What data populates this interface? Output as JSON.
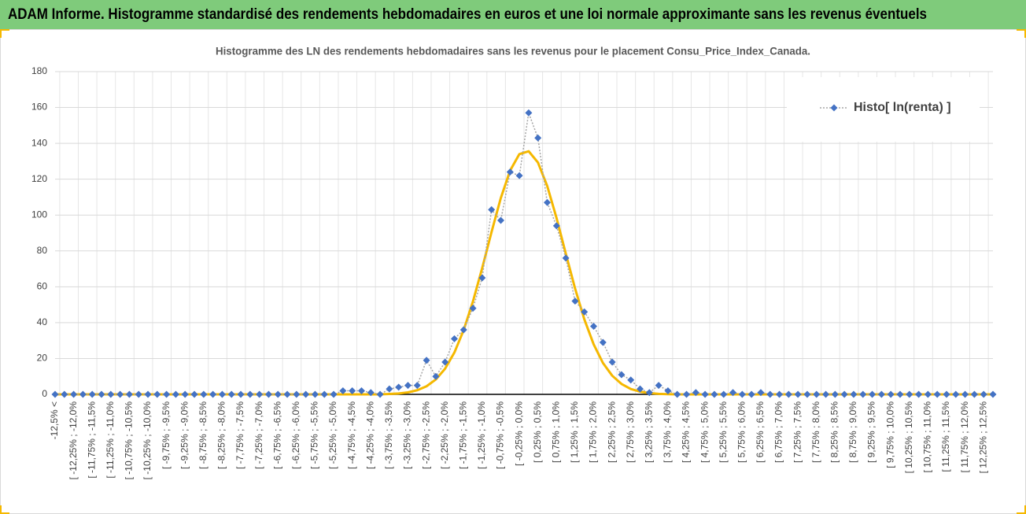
{
  "header": {
    "title": "ADAM Informe. Histogramme standardisé des rendements hebdomadaires en euros et une loi normale approximante sans les revenus éventuels"
  },
  "chart_data": {
    "type": "line",
    "title": "Histogramme  des LN des rendements  hebdomadaires sans les revenus pour le placement Consu_Price_Index_Canada.",
    "categories": [
      "-12,5% <",
      null,
      "[ -12,25% ; -12,0%",
      null,
      "[ -11,75% ; -11,5%",
      null,
      "[ -11,25% ; -11,0%",
      null,
      "[ -10,75% ; -10,5%",
      null,
      "[ -10,25% ; -10,0%",
      null,
      "[ -9,75% ; -9,5%",
      null,
      "[ -9,25% ; -9,0%",
      null,
      "[ -8,75% ; -8,5%",
      null,
      "[ -8,25% ; -8,0%",
      null,
      "[ -7,75% ; -7,5%",
      null,
      "[ -7,25% ; -7,0%",
      null,
      "[ -6,75% ; -6,5%",
      null,
      "[ -6,25% ; -6,0%",
      null,
      "[ -5,75% ; -5,5%",
      null,
      "[ -5,25% ; -5,0%",
      null,
      "[ -4,75% ; -4,5%",
      null,
      "[ -4,25% ; -4,0%",
      null,
      "[ -3,75% ; -3,5%",
      null,
      "[ -3,25% ; -3,0%",
      null,
      "[ -2,75% ; -2,5%",
      null,
      "[ -2,25% ; -2,0%",
      null,
      "[ -1,75% ; -1,5%",
      null,
      "[ -1,25% ; -1,0%",
      null,
      "[ -0,75% ; -0,5%",
      null,
      "[ -0,25% ; 0,0%",
      null,
      "[ 0,25% ; 0,5%",
      null,
      "[ 0,75% ; 1,0%",
      null,
      "[ 1,25% ; 1,5%",
      null,
      "[ 1,75% ; 2,0%",
      null,
      "[ 2,25% ; 2,5%",
      null,
      "[ 2,75% ; 3,0%",
      null,
      "[ 3,25% ; 3,5%",
      null,
      "[ 3,75% ; 4,0%",
      null,
      "[ 4,25% ; 4,5%",
      null,
      "[ 4,75% ; 5,0%",
      null,
      "[ 5,25% ; 5,5%",
      null,
      "[ 5,75% ; 6,0%",
      null,
      "[ 6,25% ; 6,5%",
      null,
      "[ 6,75% ; 7,0%",
      null,
      "[ 7,25% ; 7,5%",
      null,
      "[ 7,75% ; 8,0%",
      null,
      "[ 8,25% ; 8,5%",
      null,
      "[ 8,75% ; 9,0%",
      null,
      "[ 9,25% ; 9,5%",
      null,
      "[ 9,75% ; 10,0%",
      null,
      "[ 10,25% ; 10,5%",
      null,
      "[ 10,75% ; 11,0%",
      null,
      "[ 11,25% ; 11,5%",
      null,
      "[ 11,75% ; 12,0%",
      null,
      "[ 12,25% ; 12,5%",
      null
    ],
    "series": [
      {
        "name": "Histo[ ln(renta) ]",
        "color": "#4472c4",
        "line_color": "#a5a5a5",
        "marker": "diamond",
        "values": [
          0,
          0,
          0,
          0,
          0,
          0,
          0,
          0,
          0,
          0,
          0,
          0,
          0,
          0,
          0,
          0,
          0,
          0,
          0,
          0,
          0,
          0,
          0,
          0,
          0,
          0,
          0,
          0,
          0,
          0,
          0,
          2,
          2,
          2,
          1,
          0,
          3,
          4,
          5,
          5,
          19,
          10,
          18,
          31,
          36,
          48,
          65,
          103,
          97,
          124,
          122,
          157,
          143,
          107,
          94,
          76,
          52,
          46,
          38,
          29,
          18,
          11,
          8,
          3,
          1,
          5,
          2,
          0,
          0,
          1,
          0,
          0,
          0,
          1,
          0,
          0,
          1,
          0,
          0,
          0,
          0,
          0,
          0,
          0,
          0,
          0,
          0,
          0,
          0,
          0,
          0,
          0,
          0,
          0,
          0,
          0,
          0,
          0,
          0,
          0,
          0,
          0
        ]
      },
      {
        "color": "#f5b800",
        "values": [
          0,
          0,
          0,
          0,
          0,
          0,
          0,
          0,
          0,
          0,
          0,
          0,
          0,
          0,
          0,
          0,
          0,
          0,
          0,
          0,
          0,
          0,
          0,
          0,
          0,
          0,
          0,
          0,
          0,
          0,
          0,
          0,
          0,
          0,
          0,
          0,
          0.2,
          0.5,
          1.1,
          2.3,
          4.5,
          8.3,
          14.3,
          23.3,
          35.8,
          51.8,
          70.5,
          90.5,
          109.5,
          124.8,
          134.0,
          135.6,
          129.3,
          116.2,
          98.4,
          78.5,
          59.0,
          41.8,
          27.9,
          17.5,
          10.4,
          5.8,
          3.0,
          1.5,
          0.7,
          0.3,
          0.1,
          0,
          0,
          0,
          0,
          0,
          0,
          0,
          0,
          0,
          0,
          0,
          0,
          0,
          0,
          0,
          0,
          0,
          0,
          0,
          0,
          0,
          0,
          0,
          0,
          0,
          0,
          0,
          0,
          0,
          0,
          0,
          0,
          0,
          0,
          0
        ]
      }
    ],
    "ylim": [
      0,
      180
    ],
    "yticks": [
      0,
      20,
      40,
      60,
      80,
      100,
      120,
      140,
      160,
      180
    ],
    "grid": true,
    "legend": "upper right"
  }
}
